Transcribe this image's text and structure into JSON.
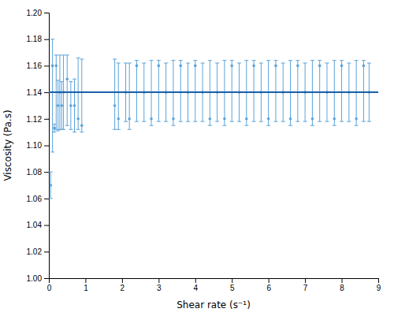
{
  "chart_data": {
    "type": "scatter",
    "xlabel": "Shear rate (s⁻¹)",
    "ylabel": "Viscosity (Pa.s)",
    "xlim": [
      0,
      9
    ],
    "ylim": [
      1.0,
      1.2
    ],
    "xticks": [
      0,
      1,
      2,
      3,
      4,
      5,
      6,
      7,
      8,
      9
    ],
    "yticks": [
      {
        "value": 1.0,
        "label": "1.00"
      },
      1.02,
      1.04,
      1.06,
      1.08,
      {
        "value": 1.1,
        "label": "1.10"
      },
      1.12,
      1.14,
      1.16,
      1.18,
      {
        "value": 1.2,
        "label": "1.20"
      }
    ],
    "grid": false,
    "series": [
      {
        "color": "#5ba3d9",
        "x": [
          0.05,
          0.1,
          0.15,
          0.2,
          0.25,
          0.3,
          0.35,
          0.4,
          0.5,
          0.6,
          0.7,
          0.8,
          0.9,
          1.8,
          1.9,
          2.1,
          2.2,
          2.4,
          2.6,
          2.8,
          3.0,
          3.2,
          3.4,
          3.6,
          3.8,
          4.0,
          4.2,
          4.4,
          4.6,
          4.8,
          5.0,
          5.2,
          5.4,
          5.6,
          5.8,
          6.0,
          6.2,
          6.4,
          6.6,
          6.8,
          7.0,
          7.2,
          7.4,
          7.6,
          7.8,
          8.0,
          8.2,
          8.4,
          8.6,
          8.75
        ],
        "values": [
          1.07,
          1.16,
          1.113,
          1.16,
          1.13,
          1.14,
          1.13,
          1.14,
          1.15,
          1.13,
          1.13,
          1.12,
          1.115,
          1.13,
          1.12,
          1.14,
          1.12,
          1.16,
          1.14,
          1.12,
          1.16,
          1.14,
          1.12,
          1.16,
          1.14,
          1.16,
          1.14,
          1.12,
          1.14,
          1.12,
          1.16,
          1.14,
          1.12,
          1.16,
          1.14,
          1.12,
          1.16,
          1.14,
          1.12,
          1.16,
          1.14,
          1.12,
          1.16,
          1.14,
          1.12,
          1.16,
          1.14,
          1.12,
          1.16,
          1.14
        ],
        "error_low": [
          0.01,
          0.065,
          0.003,
          0.048,
          0.019,
          0.028,
          0.018,
          0.028,
          0.035,
          0.018,
          0.02,
          0.008,
          0.005,
          0.018,
          0.008,
          0.022,
          0.008,
          0.042,
          0.022,
          0.005,
          0.042,
          0.022,
          0.005,
          0.042,
          0.022,
          0.042,
          0.022,
          0.005,
          0.022,
          0.005,
          0.042,
          0.022,
          0.005,
          0.042,
          0.022,
          0.005,
          0.042,
          0.022,
          0.005,
          0.042,
          0.022,
          0.005,
          0.042,
          0.022,
          0.005,
          0.042,
          0.022,
          0.005,
          0.042,
          0.022
        ],
        "error_high": [
          0.01,
          0.02,
          0.003,
          0.008,
          0.019,
          0.028,
          0.018,
          0.028,
          0.018,
          0.018,
          0.02,
          0.046,
          0.05,
          0.035,
          0.042,
          0.022,
          0.042,
          0.004,
          0.022,
          0.044,
          0.004,
          0.022,
          0.044,
          0.004,
          0.022,
          0.004,
          0.022,
          0.044,
          0.022,
          0.044,
          0.004,
          0.022,
          0.044,
          0.004,
          0.022,
          0.044,
          0.004,
          0.022,
          0.044,
          0.004,
          0.022,
          0.044,
          0.004,
          0.022,
          0.044,
          0.004,
          0.022,
          0.044,
          0.004,
          0.022
        ]
      }
    ],
    "hline": {
      "value": 1.14,
      "color": "#1a5fa8"
    }
  }
}
